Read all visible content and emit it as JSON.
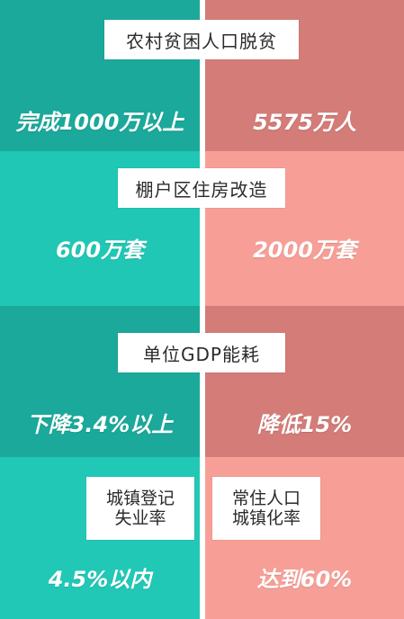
{
  "rural_poverty": {
    "label": "农村贫困人口脱贫",
    "target": "完成1000万以上",
    "achieved": "5575万人"
  },
  "shantytown": {
    "label": "棚户区住房改造",
    "target": "600万套",
    "achieved": "2000万套"
  },
  "gdp_energy": {
    "label": "单位GDP能耗",
    "target": "下降3.4%以上",
    "achieved": "降低15%"
  },
  "unemployment": {
    "label_line1": "城镇登记",
    "label_line2": "失业率",
    "target": "4.5%以内"
  },
  "urbanization": {
    "label_line1": "常住人口",
    "label_line2": "城镇化率",
    "achieved": "达到60%"
  },
  "colors": {
    "teal_dark": "#1aa99a",
    "teal_light": "#21c7b5",
    "salmon_dark": "#d37c78",
    "salmon_light": "#f79f97"
  }
}
